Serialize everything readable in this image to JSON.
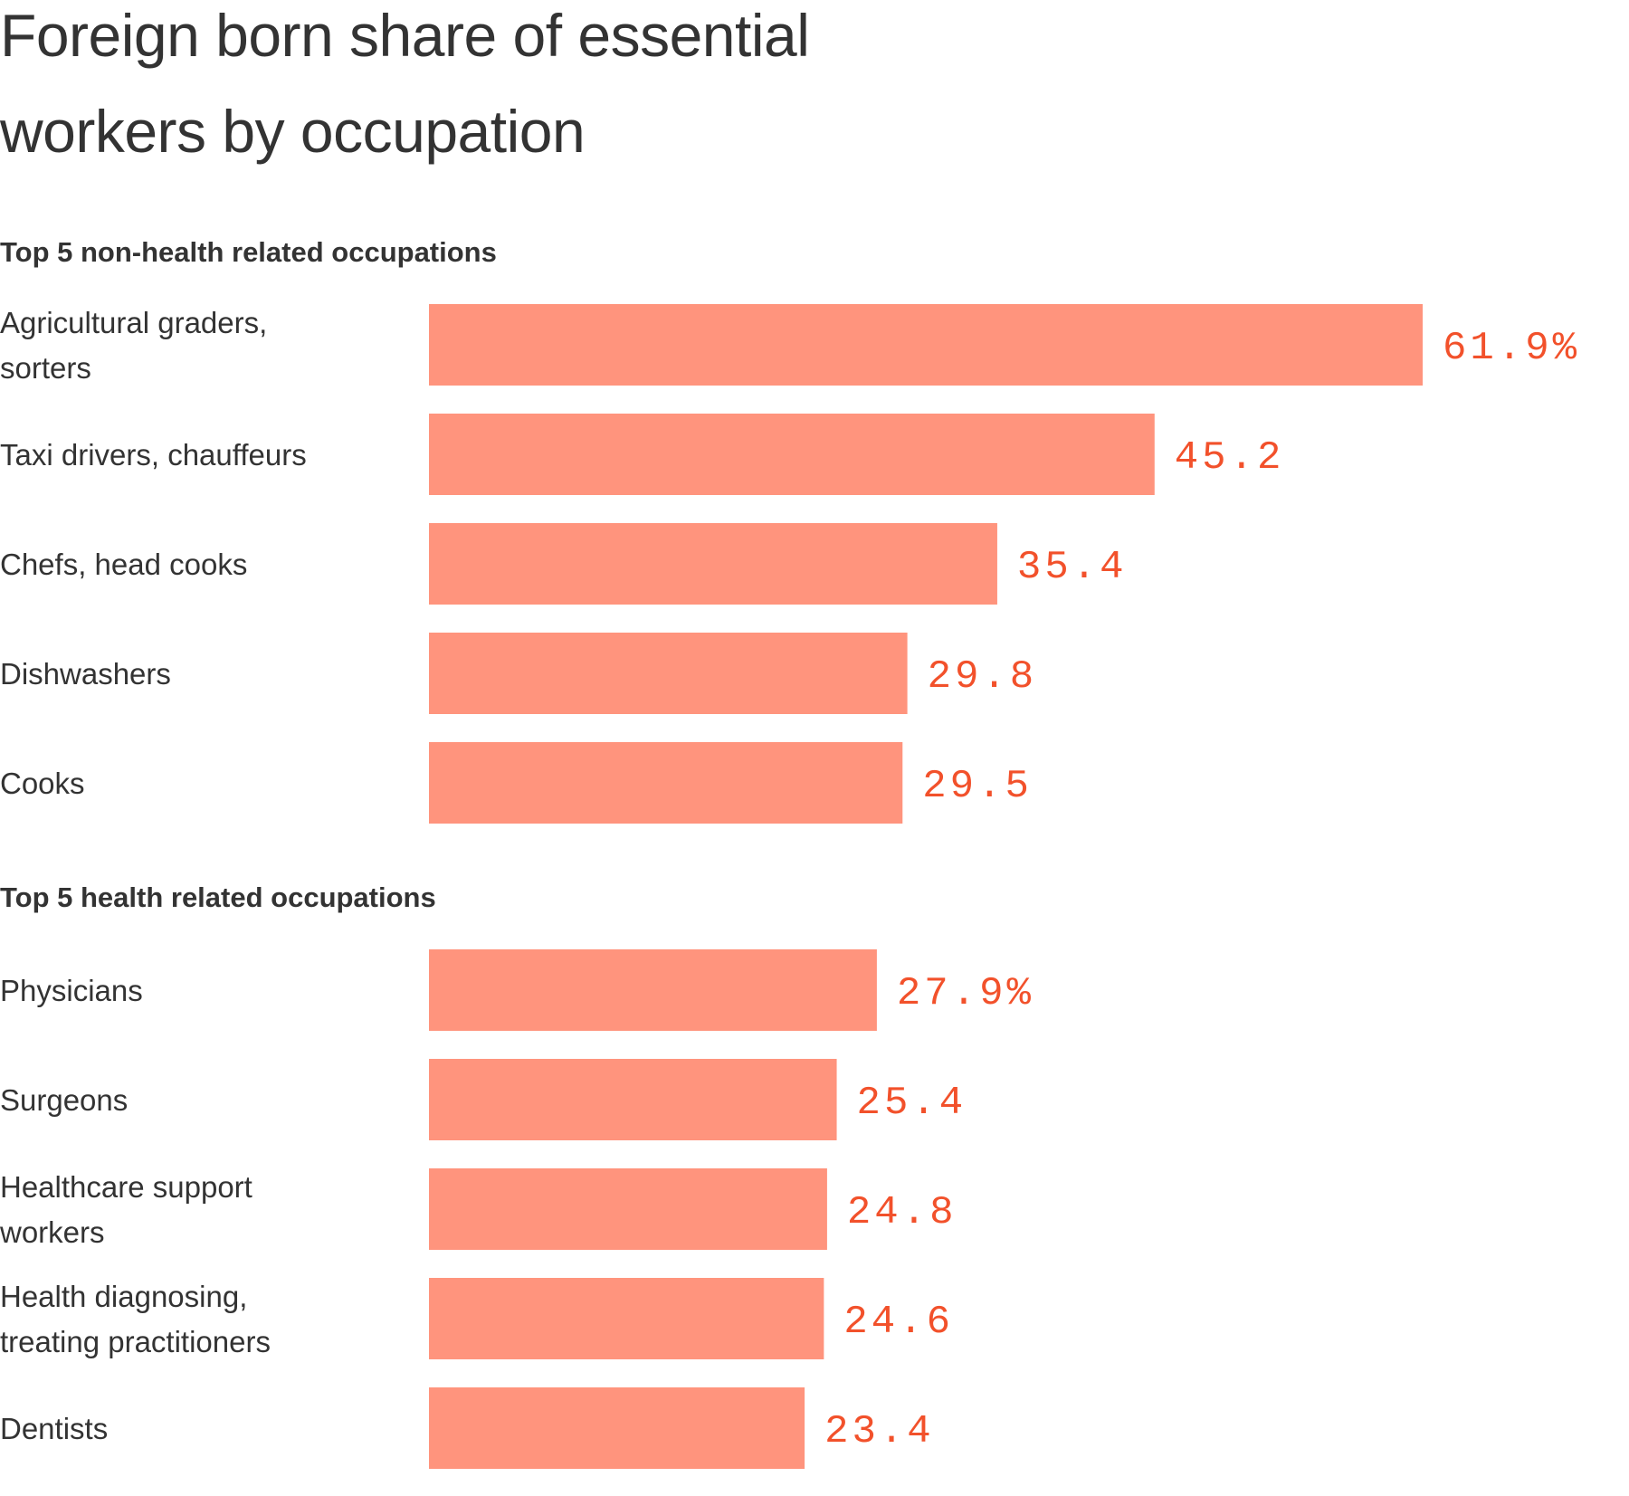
{
  "colors": {
    "bar": "#ff947d",
    "value_text": "#f2512b",
    "text": "#333333"
  },
  "chart_data": {
    "type": "bar",
    "orientation": "horizontal",
    "title": "Foreign born share of essential workers by occupation",
    "title_lines": [
      "Foreign born share of essential",
      "workers by occupation"
    ],
    "xlim": [
      0,
      61.9
    ],
    "unit": "%",
    "groups": [
      {
        "title": "Top 5 non-health related occupations",
        "rows": [
          {
            "label_lines": [
              "Agricultural graders,",
              "sorters"
            ],
            "value": 61.9,
            "value_label": "61.9%"
          },
          {
            "label_lines": [
              "Taxi drivers, chauffeurs"
            ],
            "value": 45.2,
            "value_label": "45.2"
          },
          {
            "label_lines": [
              "Chefs, head cooks"
            ],
            "value": 35.4,
            "value_label": "35.4"
          },
          {
            "label_lines": [
              "Dishwashers"
            ],
            "value": 29.8,
            "value_label": "29.8"
          },
          {
            "label_lines": [
              "Cooks"
            ],
            "value": 29.5,
            "value_label": "29.5"
          }
        ]
      },
      {
        "title": "Top 5 health related occupations",
        "rows": [
          {
            "label_lines": [
              "Physicians"
            ],
            "value": 27.9,
            "value_label": "27.9%"
          },
          {
            "label_lines": [
              "Surgeons"
            ],
            "value": 25.4,
            "value_label": "25.4"
          },
          {
            "label_lines": [
              "Healthcare support",
              "workers"
            ],
            "value": 24.8,
            "value_label": "24.8"
          },
          {
            "label_lines": [
              "Health diagnosing,",
              "treating practitioners"
            ],
            "value": 24.6,
            "value_label": "24.6"
          },
          {
            "label_lines": [
              "Dentists"
            ],
            "value": 23.4,
            "value_label": "23.4"
          }
        ]
      }
    ]
  }
}
